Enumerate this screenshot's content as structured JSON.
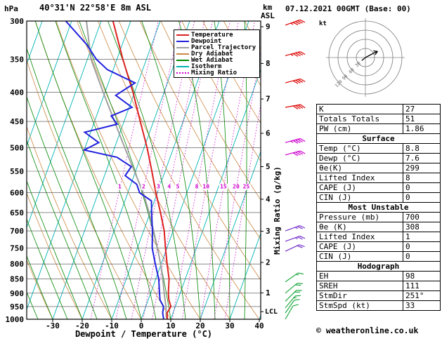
{
  "header": {
    "pressure_unit": "hPa",
    "station_title": "40°31'N 22°58'E 8m ASL",
    "km_label": "km",
    "asl_label": "ASL",
    "datetime": "07.12.2021 00GMT (Base: 00)"
  },
  "legend": {
    "items": [
      {
        "label": "Temperature",
        "color": "#dd2020",
        "dash": "solid"
      },
      {
        "label": "Dewpoint",
        "color": "#2020dd",
        "dash": "solid"
      },
      {
        "label": "Parcel Trajectory",
        "color": "#a0a0a0",
        "dash": "solid"
      },
      {
        "label": "Dry Adiabat",
        "color": "#cc8844",
        "dash": "solid"
      },
      {
        "label": "Wet Adiabat",
        "color": "#008800",
        "dash": "solid"
      },
      {
        "label": "Isotherm",
        "color": "#00b3b3",
        "dash": "solid"
      },
      {
        "label": "Mixing Ratio",
        "color": "#cc00cc",
        "dash": "dotted"
      }
    ]
  },
  "chart_data": {
    "type": "skewt-logp",
    "xlabel": "Dewpoint / Temperature (°C)",
    "mixing_ratio_axis_label": "Mixing Ratio (g/kg)",
    "lcl_label": "LCL",
    "pressure_range": [
      300,
      1000
    ],
    "pressure_ticks": [
      300,
      350,
      400,
      450,
      500,
      550,
      600,
      650,
      700,
      750,
      800,
      850,
      900,
      950,
      1000
    ],
    "temp_ticks": [
      -30,
      -20,
      -10,
      0,
      10,
      20,
      30,
      40
    ],
    "km_ticks": [
      1,
      2,
      3,
      4,
      5,
      6,
      7,
      8,
      9
    ],
    "km_tick_pressures": [
      899,
      795,
      701,
      616,
      540,
      472,
      411,
      356,
      307
    ],
    "lcl_pressure": 970,
    "isotherm_step": 10,
    "dry_adiabat_step": 10,
    "wet_adiabat_step": 5,
    "mixing_ratio_values": [
      1,
      2,
      3,
      4,
      5,
      8,
      10,
      15,
      20,
      25
    ],
    "mixing_ratio_label_pressure": 590,
    "temperature_profile": [
      [
        1000,
        8.8
      ],
      [
        975,
        8.0
      ],
      [
        950,
        8.5
      ],
      [
        925,
        7.0
      ],
      [
        900,
        6.0
      ],
      [
        850,
        4.5
      ],
      [
        800,
        2.0
      ],
      [
        750,
        -0.5
      ],
      [
        700,
        -3.0
      ],
      [
        650,
        -6.5
      ],
      [
        600,
        -10.5
      ],
      [
        550,
        -14.5
      ],
      [
        500,
        -19.0
      ],
      [
        450,
        -24.5
      ],
      [
        400,
        -30.5
      ],
      [
        350,
        -38.0
      ],
      [
        300,
        -46.0
      ]
    ],
    "dewpoint_profile": [
      [
        1000,
        7.6
      ],
      [
        975,
        6.5
      ],
      [
        950,
        6.0
      ],
      [
        925,
        4.0
      ],
      [
        900,
        3.0
      ],
      [
        850,
        1.0
      ],
      [
        800,
        -2.0
      ],
      [
        750,
        -5.0
      ],
      [
        700,
        -7.0
      ],
      [
        650,
        -9.5
      ],
      [
        620,
        -11.0
      ],
      [
        600,
        -16.0
      ],
      [
        580,
        -18.0
      ],
      [
        560,
        -23.0
      ],
      [
        540,
        -22.0
      ],
      [
        520,
        -28.0
      ],
      [
        505,
        -40.0
      ],
      [
        490,
        -36.0
      ],
      [
        470,
        -42.0
      ],
      [
        455,
        -32.0
      ],
      [
        440,
        -35.0
      ],
      [
        425,
        -29.0
      ],
      [
        405,
        -36.0
      ],
      [
        385,
        -31.0
      ],
      [
        365,
        -42.0
      ],
      [
        350,
        -47.0
      ],
      [
        330,
        -52.0
      ],
      [
        300,
        -62.0
      ]
    ],
    "parcel_profile": [
      [
        1000,
        8.8
      ],
      [
        990,
        8.2
      ],
      [
        950,
        6.8
      ],
      [
        900,
        4.6
      ],
      [
        850,
        2.4
      ],
      [
        800,
        -0.2
      ],
      [
        750,
        -3.2
      ],
      [
        700,
        -6.6
      ],
      [
        650,
        -10.4
      ],
      [
        600,
        -14.8
      ],
      [
        550,
        -20.4
      ],
      [
        500,
        -26.6
      ],
      [
        450,
        -33.2
      ],
      [
        400,
        -40.6
      ],
      [
        350,
        -48.8
      ],
      [
        300,
        -55.0
      ]
    ],
    "wind_barbs": [
      {
        "p": 305,
        "speed_kt": 45,
        "dir_deg": 250,
        "color": "#dd0000"
      },
      {
        "p": 345,
        "speed_kt": 45,
        "dir_deg": 255,
        "color": "#dd0000"
      },
      {
        "p": 385,
        "speed_kt": 40,
        "dir_deg": 255,
        "color": "#dd0000"
      },
      {
        "p": 425,
        "speed_kt": 40,
        "dir_deg": 260,
        "color": "#dd0000"
      },
      {
        "p": 490,
        "speed_kt": 45,
        "dir_deg": 255,
        "color": "#cc00cc"
      },
      {
        "p": 515,
        "speed_kt": 40,
        "dir_deg": 255,
        "color": "#cc00cc"
      },
      {
        "p": 700,
        "speed_kt": 25,
        "dir_deg": 250,
        "color": "#7733cc"
      },
      {
        "p": 730,
        "speed_kt": 25,
        "dir_deg": 250,
        "color": "#7733cc"
      },
      {
        "p": 760,
        "speed_kt": 20,
        "dir_deg": 245,
        "color": "#7733cc"
      },
      {
        "p": 860,
        "speed_kt": 15,
        "dir_deg": 235,
        "color": "#22aa44"
      },
      {
        "p": 900,
        "speed_kt": 20,
        "dir_deg": 230,
        "color": "#22aa44"
      },
      {
        "p": 930,
        "speed_kt": 20,
        "dir_deg": 225,
        "color": "#22aa44"
      },
      {
        "p": 955,
        "speed_kt": 15,
        "dir_deg": 220,
        "color": "#22aa44"
      },
      {
        "p": 975,
        "speed_kt": 10,
        "dir_deg": 215,
        "color": "#22aa44"
      },
      {
        "p": 1000,
        "speed_kt": 10,
        "dir_deg": 210,
        "color": "#22aa44"
      }
    ],
    "hodograph": {
      "unit_label": "kt",
      "ring_kt": [
        30,
        60,
        90,
        120
      ],
      "trace_uv_kt": [
        [
          -12,
          -10
        ],
        [
          0,
          0
        ],
        [
          15,
          8
        ],
        [
          30,
          16
        ],
        [
          40,
          20
        ]
      ]
    }
  },
  "table": {
    "indices": [
      {
        "label": "K",
        "value": "27"
      },
      {
        "label": "Totals Totals",
        "value": "51"
      },
      {
        "label": "PW (cm)",
        "value": "1.86"
      }
    ],
    "sections": [
      {
        "title": "Surface",
        "rows": [
          {
            "label": "Temp (°C)",
            "value": "8.8"
          },
          {
            "label": "Dewp (°C)",
            "value": "7.6"
          },
          {
            "label": "θe(K)",
            "value": "299"
          },
          {
            "label": "Lifted Index",
            "value": "8"
          },
          {
            "label": "CAPE (J)",
            "value": "0"
          },
          {
            "label": "CIN (J)",
            "value": "0"
          }
        ]
      },
      {
        "title": "Most Unstable",
        "rows": [
          {
            "label": "Pressure (mb)",
            "value": "700"
          },
          {
            "label": "θe (K)",
            "value": "308"
          },
          {
            "label": "Lifted Index",
            "value": "1"
          },
          {
            "label": "CAPE (J)",
            "value": "0"
          },
          {
            "label": "CIN (J)",
            "value": "0"
          }
        ]
      },
      {
        "title": "Hodograph",
        "rows": [
          {
            "label": "EH",
            "value": "98"
          },
          {
            "label": "SREH",
            "value": "111"
          },
          {
            "label": "StmDir",
            "value": "251°"
          },
          {
            "label": "StmSpd (kt)",
            "value": "33"
          }
        ]
      }
    ]
  },
  "footer": {
    "copyright": "© weatheronline.co.uk"
  }
}
